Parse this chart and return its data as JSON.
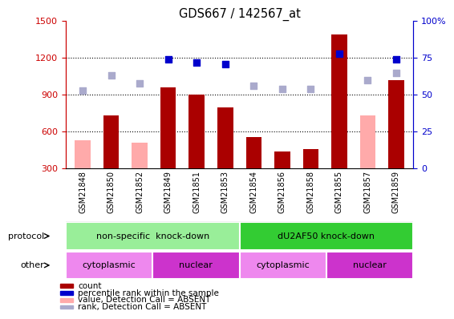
{
  "title": "GDS667 / 142567_at",
  "samples": [
    "GSM21848",
    "GSM21850",
    "GSM21852",
    "GSM21849",
    "GSM21851",
    "GSM21853",
    "GSM21854",
    "GSM21856",
    "GSM21858",
    "GSM21855",
    "GSM21857",
    "GSM21859"
  ],
  "count_values": [
    null,
    730,
    null,
    960,
    900,
    800,
    560,
    440,
    460,
    1390,
    null,
    1020
  ],
  "count_absent_values": [
    530,
    null,
    510,
    null,
    null,
    null,
    null,
    null,
    null,
    null,
    730,
    null
  ],
  "rank_pct_present": [
    null,
    null,
    null,
    74,
    72,
    71,
    null,
    null,
    null,
    78,
    null,
    74
  ],
  "rank_pct_absent": [
    53,
    63,
    58,
    null,
    null,
    null,
    56,
    54,
    54,
    null,
    60,
    65
  ],
  "ylim_left": [
    300,
    1500
  ],
  "ylim_right": [
    0,
    100
  ],
  "yticks_left": [
    300,
    600,
    900,
    1200,
    1500
  ],
  "yticks_right": [
    0,
    25,
    50,
    75,
    100
  ],
  "bar_color_present": "#aa0000",
  "bar_color_absent": "#ffaaaa",
  "dot_color_present": "#0000cc",
  "dot_color_absent": "#aaaacc",
  "protocol_groups": [
    {
      "label": "non-specific  knock-down",
      "start": 0,
      "end": 6,
      "color": "#99ee99"
    },
    {
      "label": "dU2AF50 knock-down",
      "start": 6,
      "end": 12,
      "color": "#33cc33"
    }
  ],
  "other_groups": [
    {
      "label": "cytoplasmic",
      "start": 0,
      "end": 3,
      "color": "#ee88ee"
    },
    {
      "label": "nuclear",
      "start": 3,
      "end": 6,
      "color": "#cc33cc"
    },
    {
      "label": "cytoplasmic",
      "start": 6,
      "end": 9,
      "color": "#ee88ee"
    },
    {
      "label": "nuclear",
      "start": 9,
      "end": 12,
      "color": "#cc33cc"
    }
  ],
  "legend_items": [
    {
      "label": "count",
      "color": "#aa0000"
    },
    {
      "label": "percentile rank within the sample",
      "color": "#0000cc"
    },
    {
      "label": "value, Detection Call = ABSENT",
      "color": "#ffaaaa"
    },
    {
      "label": "rank, Detection Call = ABSENT",
      "color": "#aaaacc"
    }
  ],
  "bg_color": "#ffffff",
  "axis_left_color": "#cc0000",
  "axis_right_color": "#0000cc",
  "sample_bg_color": "#cccccc"
}
